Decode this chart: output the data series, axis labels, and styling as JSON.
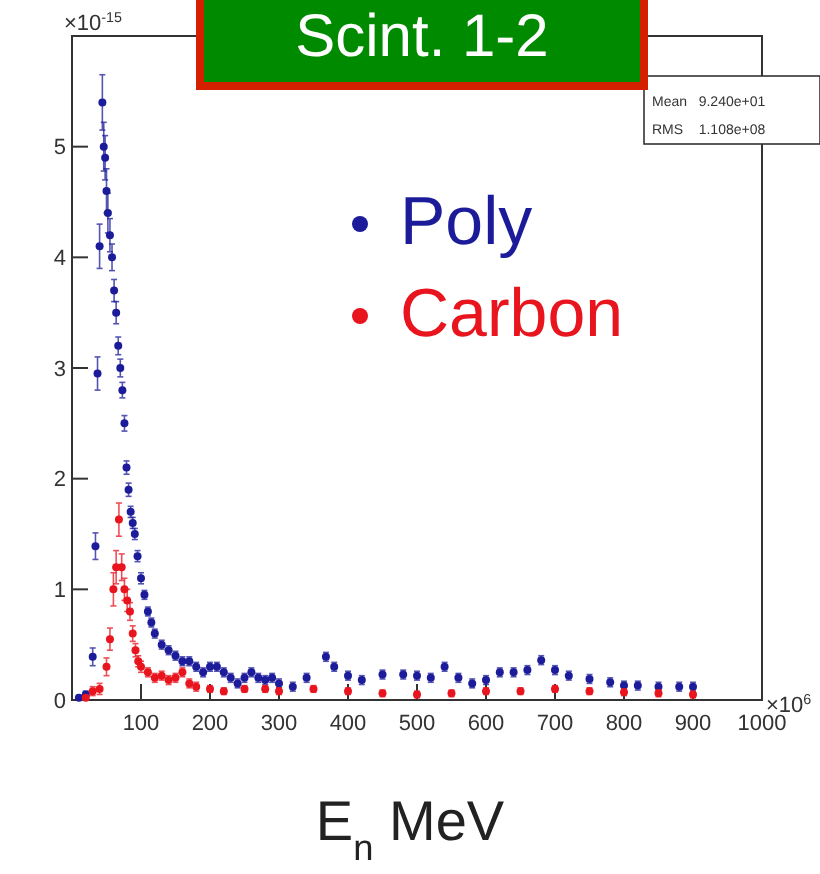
{
  "chart_data": {
    "type": "scatter",
    "title": "Scint. 1-2",
    "xlabel": "E$_{n}$ MeV",
    "annotations": [
      "×10$^{-15}$",
      "×10$^{6}$",
      "Mean   9.240e+01",
      "RMS    1.108e+08"
    ],
    "xlim": [
      0,
      1000
    ],
    "xticks": [
      100,
      200,
      300,
      400,
      500,
      600,
      700,
      800,
      900,
      1000
    ],
    "ylim": [
      0,
      6
    ],
    "yticks": [
      0,
      1,
      2,
      3,
      4,
      5
    ],
    "legend": "top",
    "marker": "circle",
    "series": [
      {
        "name": "Poly",
        "color": "#1c1c9a",
        "x": [
          10,
          20,
          30,
          34,
          37,
          40,
          44,
          46,
          48,
          50,
          52,
          55,
          58,
          61,
          64,
          67,
          70,
          73,
          76,
          79,
          82,
          85,
          88,
          91,
          95,
          100,
          105,
          110,
          115,
          120,
          130,
          140,
          150,
          160,
          170,
          180,
          190,
          200,
          210,
          220,
          230,
          240,
          250,
          260,
          270,
          280,
          290,
          300,
          320,
          340,
          368,
          380,
          400,
          420,
          450,
          480,
          500,
          520,
          540,
          560,
          580,
          600,
          620,
          640,
          660,
          680,
          700,
          720,
          750,
          780,
          800,
          820,
          850,
          880,
          900
        ],
        "values": [
          0.02,
          0.05,
          0.39,
          1.39,
          2.95,
          4.1,
          5.4,
          5.0,
          4.9,
          4.6,
          4.4,
          4.2,
          4.0,
          3.7,
          3.5,
          3.2,
          3.0,
          2.8,
          2.5,
          2.1,
          1.9,
          1.7,
          1.6,
          1.5,
          1.3,
          1.1,
          0.95,
          0.8,
          0.7,
          0.6,
          0.5,
          0.45,
          0.4,
          0.35,
          0.35,
          0.3,
          0.25,
          0.3,
          0.3,
          0.25,
          0.2,
          0.15,
          0.2,
          0.25,
          0.2,
          0.18,
          0.2,
          0.15,
          0.12,
          0.2,
          0.39,
          0.3,
          0.22,
          0.18,
          0.23,
          0.23,
          0.22,
          0.2,
          0.3,
          0.2,
          0.15,
          0.18,
          0.25,
          0.25,
          0.27,
          0.36,
          0.27,
          0.22,
          0.19,
          0.16,
          0.13,
          0.13,
          0.12,
          0.12,
          0.12
        ],
        "errors": [
          0.02,
          0.03,
          0.08,
          0.12,
          0.15,
          0.2,
          0.25,
          0.22,
          0.2,
          0.2,
          0.18,
          0.15,
          0.12,
          0.1,
          0.1,
          0.08,
          0.08,
          0.07,
          0.07,
          0.06,
          0.06,
          0.05,
          0.05,
          0.05,
          0.05,
          0.05,
          0.04,
          0.04,
          0.04,
          0.04,
          0.04,
          0.04,
          0.04,
          0.04,
          0.04,
          0.04,
          0.04,
          0.04,
          0.04,
          0.04,
          0.04,
          0.04,
          0.04,
          0.04,
          0.04,
          0.04,
          0.04,
          0.04,
          0.04,
          0.04,
          0.04,
          0.04,
          0.04,
          0.04,
          0.04,
          0.04,
          0.04,
          0.04,
          0.04,
          0.04,
          0.04,
          0.04,
          0.04,
          0.04,
          0.04,
          0.04,
          0.04,
          0.04,
          0.04,
          0.04,
          0.04,
          0.04,
          0.04,
          0.04,
          0.04
        ]
      },
      {
        "name": "Carbon",
        "color": "#e8141e",
        "x": [
          20,
          30,
          40,
          50,
          55,
          60,
          64,
          68,
          72,
          76,
          80,
          84,
          88,
          92,
          96,
          100,
          110,
          120,
          130,
          140,
          150,
          160,
          170,
          180,
          200,
          220,
          250,
          280,
          300,
          350,
          400,
          450,
          500,
          550,
          600,
          650,
          700,
          750,
          800,
          850,
          900
        ],
        "values": [
          0.02,
          0.08,
          0.1,
          0.3,
          0.55,
          1.0,
          1.2,
          1.63,
          1.2,
          1.0,
          0.9,
          0.8,
          0.6,
          0.45,
          0.35,
          0.3,
          0.25,
          0.2,
          0.22,
          0.18,
          0.2,
          0.25,
          0.15,
          0.12,
          0.1,
          0.08,
          0.1,
          0.1,
          0.08,
          0.1,
          0.08,
          0.06,
          0.05,
          0.06,
          0.08,
          0.08,
          0.1,
          0.08,
          0.07,
          0.06,
          0.05
        ],
        "errors": [
          0.02,
          0.04,
          0.05,
          0.08,
          0.1,
          0.15,
          0.15,
          0.15,
          0.12,
          0.1,
          0.1,
          0.08,
          0.07,
          0.06,
          0.05,
          0.05,
          0.04,
          0.04,
          0.04,
          0.04,
          0.04,
          0.04,
          0.04,
          0.04,
          0.03,
          0.03,
          0.03,
          0.03,
          0.03,
          0.03,
          0.03,
          0.03,
          0.03,
          0.03,
          0.03,
          0.03,
          0.03,
          0.03,
          0.03,
          0.03,
          0.03
        ]
      }
    ]
  }
}
